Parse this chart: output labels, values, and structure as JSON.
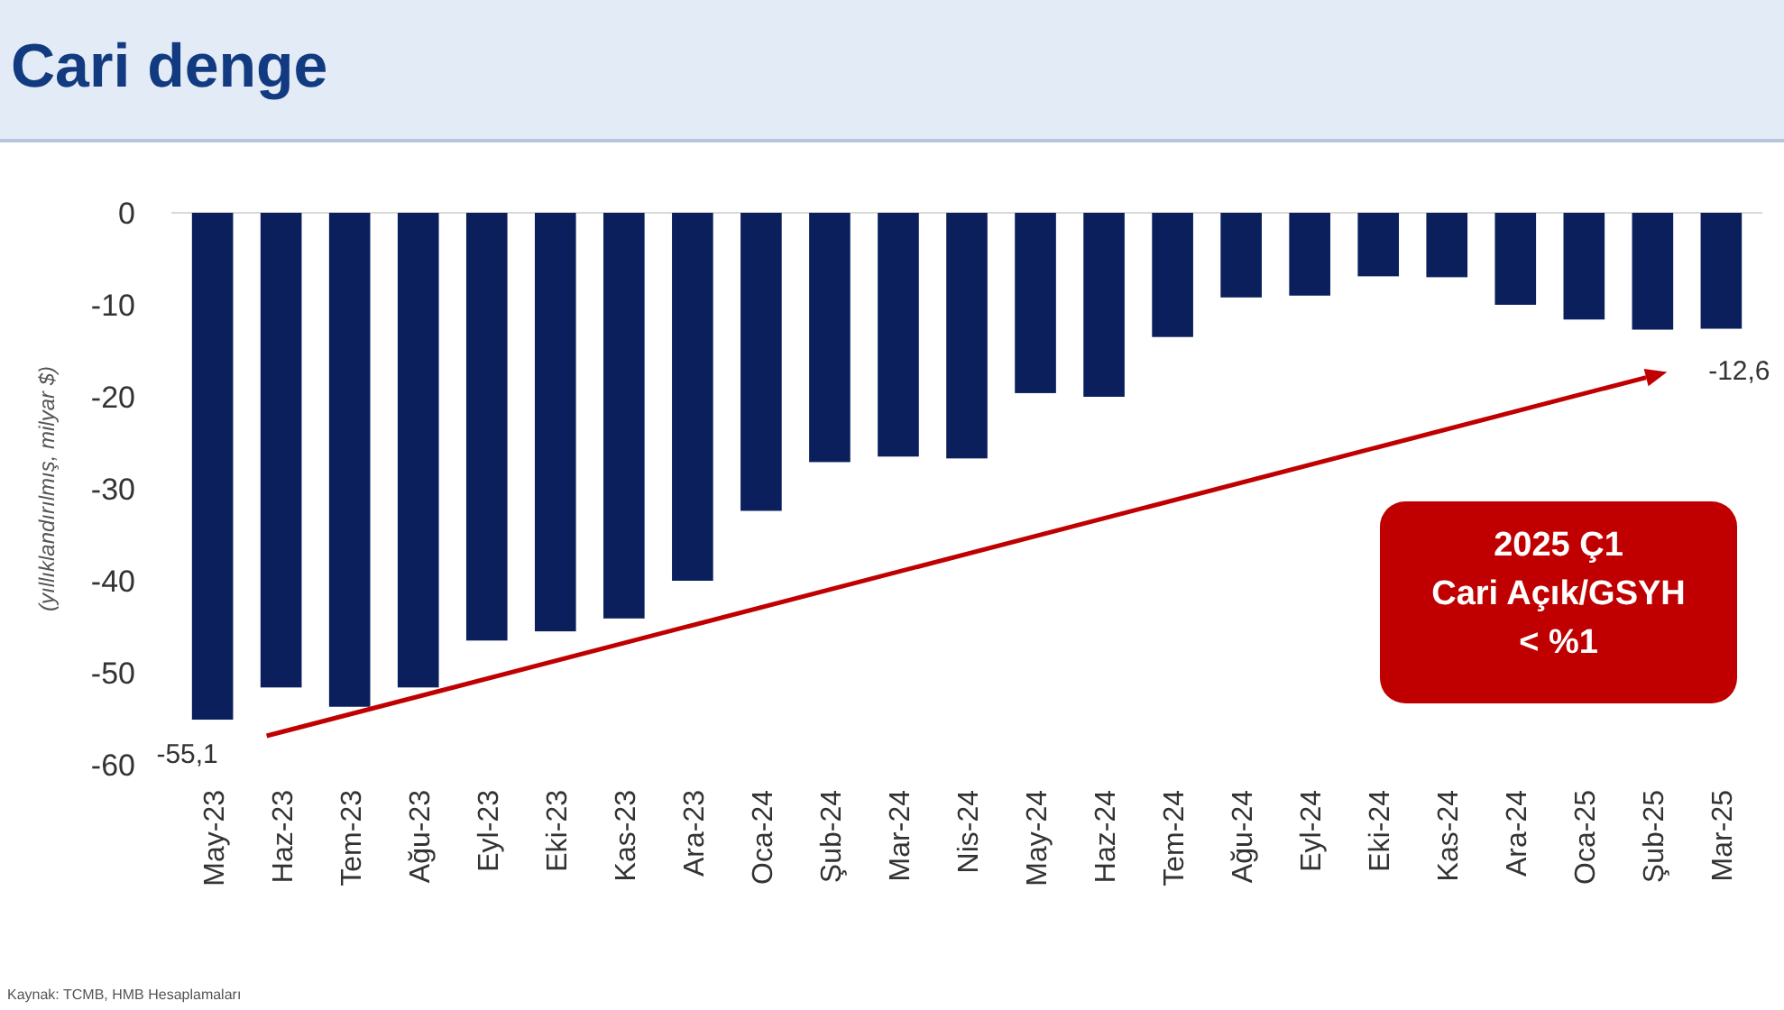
{
  "chart_data": {
    "type": "bar",
    "title": "Cari denge",
    "ylabel": "(yıllıklandırılmış, milyar $)",
    "categories": [
      "May-23",
      "Haz-23",
      "Tem-23",
      "Ağu-23",
      "Eyl-23",
      "Eki-23",
      "Kas-23",
      "Ara-23",
      "Oca-24",
      "Şub-24",
      "Mar-24",
      "Nis-24",
      "May-24",
      "Haz-24",
      "Tem-24",
      "Ağu-24",
      "Eyl-24",
      "Eki-24",
      "Kas-24",
      "Ara-24",
      "Oca-25",
      "Şub-25",
      "Mar-25"
    ],
    "values": [
      -55.1,
      -51.6,
      -53.7,
      -51.6,
      -46.5,
      -45.5,
      -44.1,
      -40.0,
      -32.4,
      -27.1,
      -26.5,
      -26.7,
      -19.6,
      -20.0,
      -13.5,
      -9.2,
      -9.0,
      -6.9,
      -7.0,
      -10.0,
      -11.6,
      -12.7,
      -12.6
    ],
    "value_labels": [
      "-55,1",
      null,
      null,
      null,
      null,
      null,
      null,
      null,
      null,
      null,
      null,
      null,
      null,
      null,
      null,
      null,
      null,
      null,
      null,
      null,
      null,
      null,
      "-12,6"
    ],
    "color": "#0a1f5c",
    "ylim": [
      -60,
      0
    ],
    "yticks": [
      -60,
      -50,
      -40,
      -30,
      -20,
      -10,
      0
    ],
    "grid": false,
    "annotations": [
      "2025 Ç1\nCari Açık/GSYH\n< %1",
      "Kaynak: TCMB, HMB Hesaplamaları"
    ]
  }
}
